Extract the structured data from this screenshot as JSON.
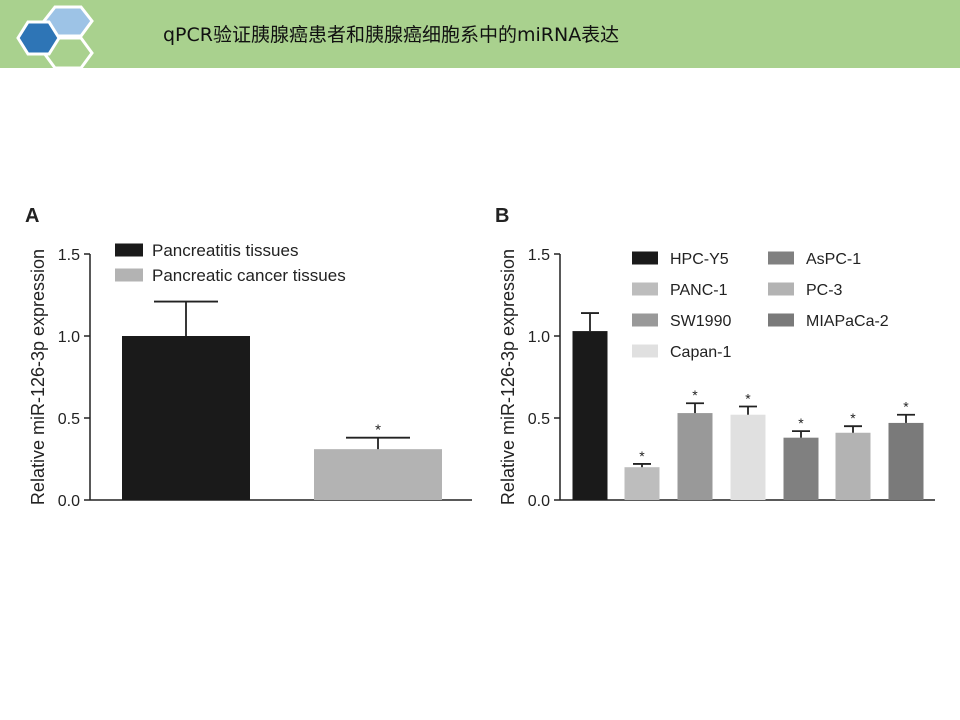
{
  "header": {
    "title": "qPCR验证胰腺癌患者和胰腺癌细胞系中的miRNA表达"
  },
  "colors": {
    "banner": "#a9d18e",
    "hex_dark": "#2e75b6",
    "hex_light": "#9dc3e6",
    "hex_green": "#a9d18e"
  },
  "chart_data": [
    {
      "type": "bar",
      "panel_label": "A",
      "ylabel": "Relative miR-126-3p expression",
      "ylim": [
        0,
        1.5
      ],
      "yticks": [
        "0.0",
        "0.5",
        "1.0",
        "1.5"
      ],
      "legend_position": "top-left",
      "series": [
        {
          "name": "Pancreatitis tissues",
          "color": "#1a1a1a",
          "value": 1.0,
          "error": 0.21,
          "sig": ""
        },
        {
          "name": "Pancreatic cancer tissues",
          "color": "#b3b3b3",
          "value": 0.31,
          "error": 0.07,
          "sig": "*"
        }
      ]
    },
    {
      "type": "bar",
      "panel_label": "B",
      "ylabel": "Relative miR-126-3p expression",
      "ylim": [
        0,
        1.5
      ],
      "yticks": [
        "0.0",
        "0.5",
        "1.0",
        "1.5"
      ],
      "legend_position": "top-right",
      "series": [
        {
          "name": "HPC-Y5",
          "color": "#1a1a1a",
          "value": 1.03,
          "error": 0.11,
          "sig": ""
        },
        {
          "name": "PANC-1",
          "color": "#bdbdbd",
          "value": 0.2,
          "error": 0.02,
          "sig": "*"
        },
        {
          "name": "SW1990",
          "color": "#999999",
          "value": 0.53,
          "error": 0.06,
          "sig": "*"
        },
        {
          "name": "Capan-1",
          "color": "#e0e0e0",
          "value": 0.52,
          "error": 0.05,
          "sig": "*"
        },
        {
          "name": "AsPC-1",
          "color": "#808080",
          "value": 0.38,
          "error": 0.04,
          "sig": "*"
        },
        {
          "name": "PC-3",
          "color": "#b3b3b3",
          "value": 0.41,
          "error": 0.04,
          "sig": "*"
        },
        {
          "name": "MIAPaCa-2",
          "color": "#7a7a7a",
          "value": 0.47,
          "error": 0.05,
          "sig": "*"
        }
      ]
    }
  ]
}
